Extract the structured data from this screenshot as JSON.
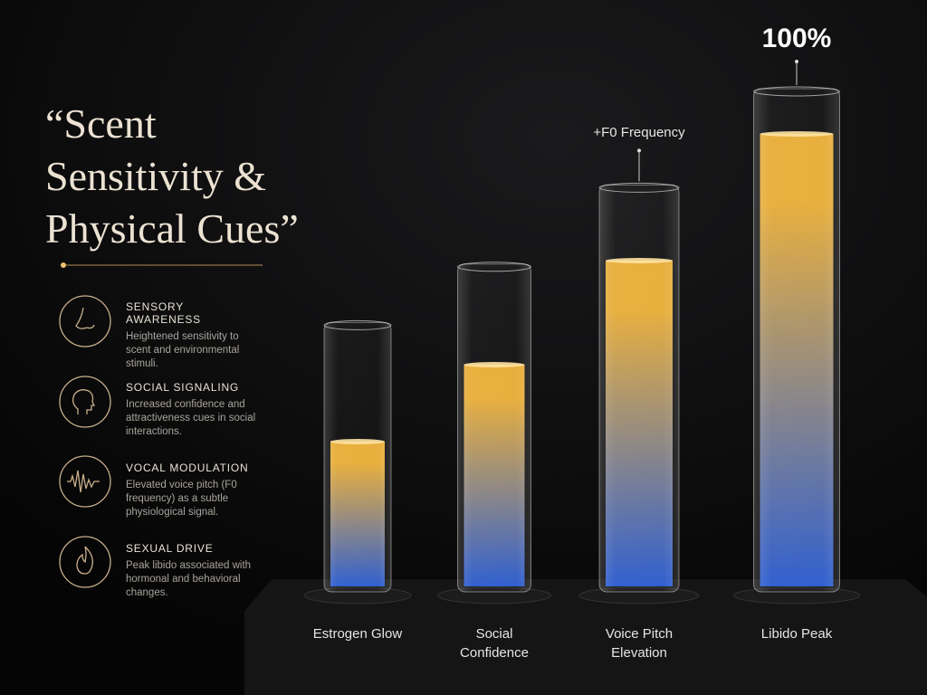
{
  "chart_data": {
    "type": "bar",
    "title": "“Scent Sensitivity & Physical Cues”",
    "categories": [
      "Estrogen Glow",
      "Social Confidence",
      "Voice Pitch Elevation",
      "Libido Peak"
    ],
    "values": [
      32,
      49,
      72,
      100
    ],
    "value_labels": [
      null,
      null,
      null,
      "100%"
    ],
    "annotations": [
      {
        "text": "+F0 Frequency",
        "category": "Voice Pitch Elevation"
      }
    ],
    "colors": [
      "#f3b53a",
      "#2c5fd8"
    ]
  },
  "features": [
    {
      "heading": "SENSORY AWARENESS",
      "text": "Heightened sensitivity to scent and environmental stimuli."
    },
    {
      "heading": "SOCIAL SIGNALING",
      "text": "Increased confidence and attractiveness cues in social interactions."
    },
    {
      "heading": "VOCAL MODULATION",
      "text": "Elevated voice pitch (F0 frequency) as a subtle physiological signal."
    },
    {
      "heading": "SEXUAL DRIVE",
      "text": "Peak libido associated with hormonal and behavioral changes."
    }
  ]
}
